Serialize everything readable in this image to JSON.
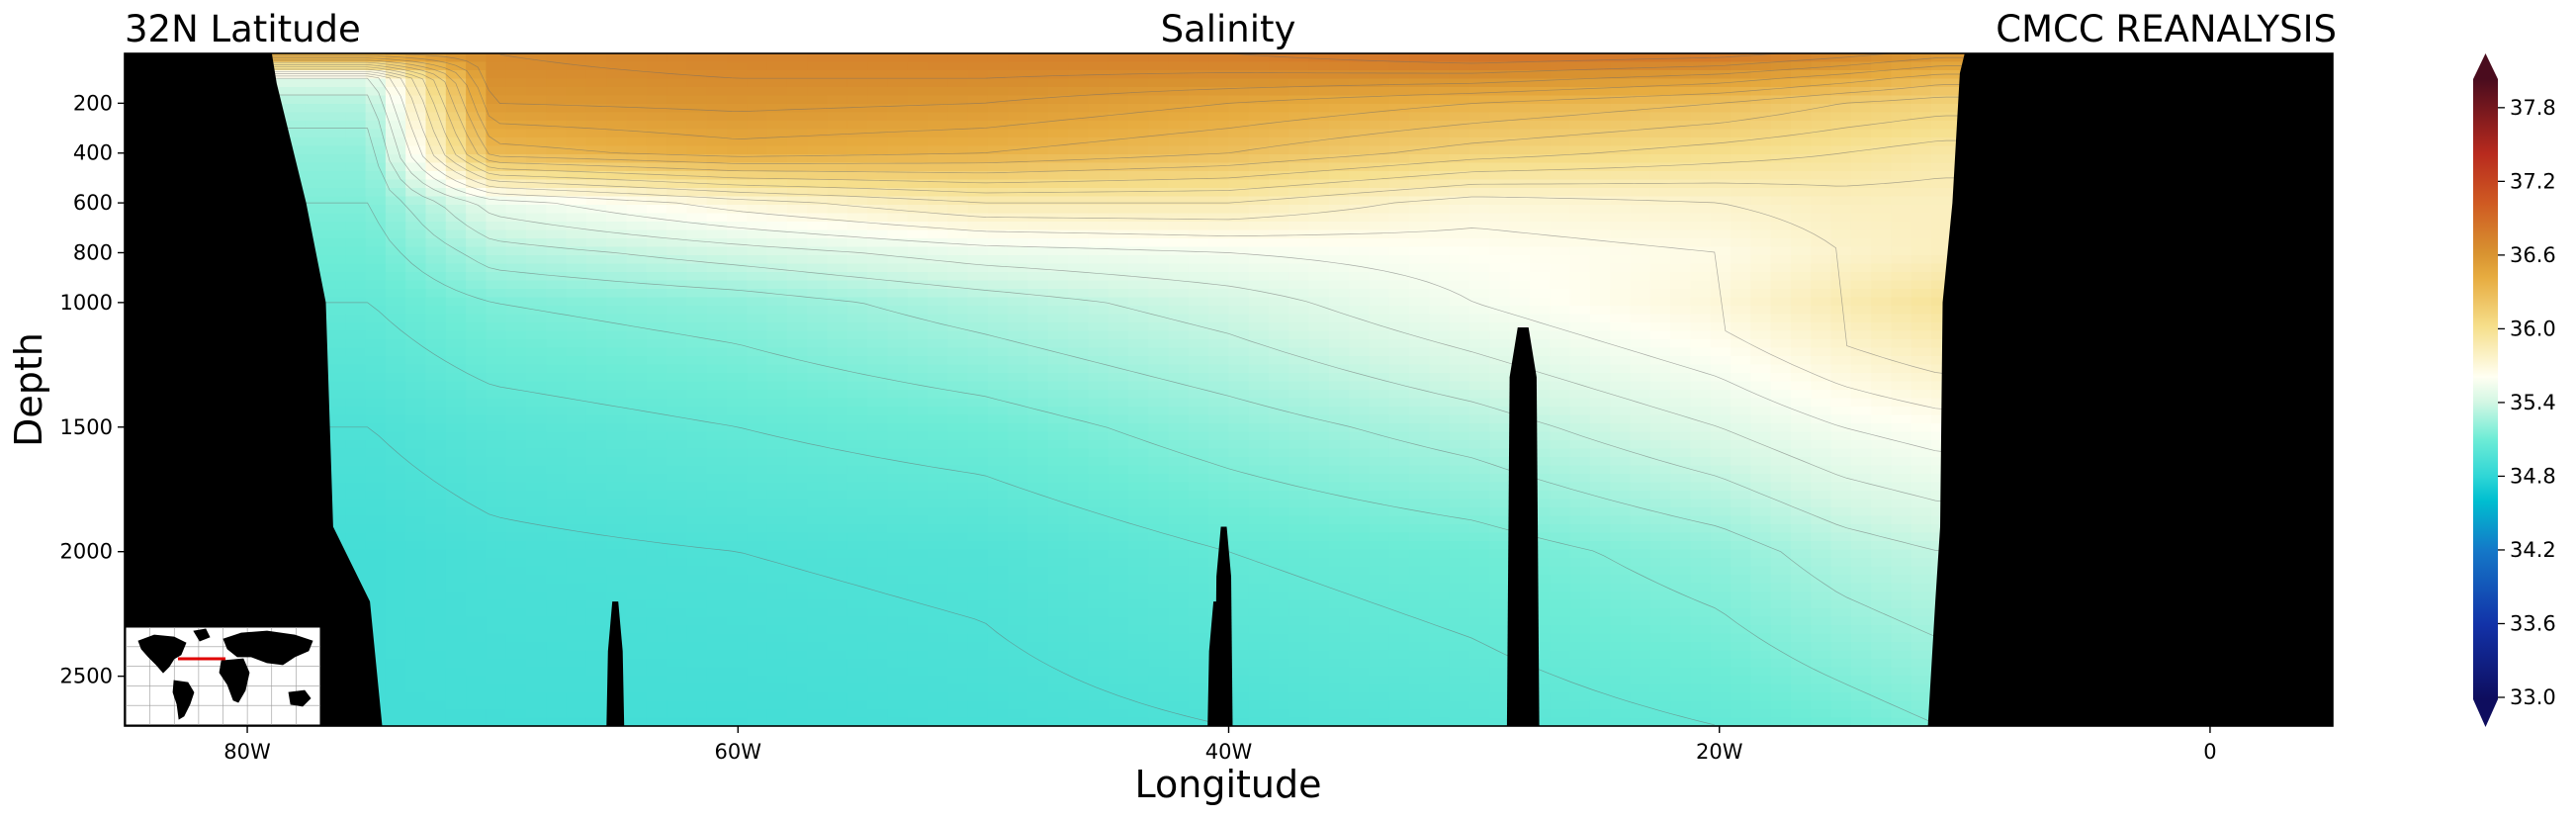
{
  "chart_data": {
    "type": "heatmap",
    "title_left": "32N Latitude",
    "title": "Salinity",
    "title_right": "CMCC REANALYSIS",
    "xlabel": "Longitude",
    "ylabel": "Depth",
    "x_ticks": [
      {
        "value": -80,
        "label": "80W"
      },
      {
        "value": -60,
        "label": "60W"
      },
      {
        "value": -40,
        "label": "40W"
      },
      {
        "value": -20,
        "label": "20W"
      },
      {
        "value": 0,
        "label": "0"
      }
    ],
    "y_ticks": [
      {
        "value": 200,
        "label": "200"
      },
      {
        "value": 400,
        "label": "400"
      },
      {
        "value": 600,
        "label": "600"
      },
      {
        "value": 800,
        "label": "800"
      },
      {
        "value": 1000,
        "label": "1000"
      },
      {
        "value": 1500,
        "label": "1500"
      },
      {
        "value": 2000,
        "label": "2000"
      },
      {
        "value": 2500,
        "label": "2500"
      }
    ],
    "xlim": [
      -85,
      5
    ],
    "ylim": [
      2700,
      0
    ],
    "colorbar": {
      "vmin": 33.0,
      "vmax": 38.0,
      "extend": "both",
      "ticks": [
        {
          "value": 33.0,
          "label": "33.0"
        },
        {
          "value": 33.6,
          "label": "33.6"
        },
        {
          "value": 34.2,
          "label": "34.2"
        },
        {
          "value": 34.8,
          "label": "34.8"
        },
        {
          "value": 35.4,
          "label": "35.4"
        },
        {
          "value": 36.0,
          "label": "36.0"
        },
        {
          "value": 36.6,
          "label": "36.6"
        },
        {
          "value": 37.2,
          "label": "37.2"
        },
        {
          "value": 37.8,
          "label": "37.8"
        }
      ],
      "stops": [
        {
          "value": 33.0,
          "color": "#0e0d5e"
        },
        {
          "value": 33.6,
          "color": "#1232a8"
        },
        {
          "value": 34.2,
          "color": "#1478c8"
        },
        {
          "value": 34.6,
          "color": "#00bed0"
        },
        {
          "value": 34.8,
          "color": "#2fd6d6"
        },
        {
          "value": 35.1,
          "color": "#6eecd6"
        },
        {
          "value": 35.4,
          "color": "#d4f7e4"
        },
        {
          "value": 35.6,
          "color": "#fffff2"
        },
        {
          "value": 36.0,
          "color": "#f6df8c"
        },
        {
          "value": 36.4,
          "color": "#e7ac40"
        },
        {
          "value": 36.6,
          "color": "#d89230"
        },
        {
          "value": 37.0,
          "color": "#cf5a22"
        },
        {
          "value": 37.4,
          "color": "#b82a1e"
        },
        {
          "value": 38.0,
          "color": "#4a0c1e"
        }
      ]
    },
    "salinity_sections": [
      {
        "lon": -75,
        "depths": [
          0,
          100,
          200,
          400,
          600,
          800,
          1000,
          1500,
          2000,
          2700
        ],
        "values": [
          36.55,
          35.45,
          35.3,
          35.2,
          35.15,
          35.1,
          35.05,
          34.95,
          34.9,
          34.9
        ]
      },
      {
        "lon": -70,
        "depths": [
          0,
          100,
          200,
          400,
          600,
          800,
          1000,
          1500,
          2000,
          2700
        ],
        "values": [
          36.65,
          36.62,
          36.55,
          36.3,
          35.5,
          35.3,
          35.15,
          35.0,
          34.93,
          34.9
        ]
      },
      {
        "lon": -60,
        "depths": [
          0,
          100,
          200,
          400,
          600,
          800,
          1000,
          1500,
          2000,
          2700
        ],
        "values": [
          36.7,
          36.65,
          36.58,
          36.4,
          35.7,
          35.4,
          35.2,
          35.05,
          34.95,
          34.9
        ]
      },
      {
        "lon": -50,
        "depths": [
          0,
          100,
          200,
          400,
          600,
          800,
          1000,
          1500,
          2000,
          2700
        ],
        "values": [
          36.72,
          36.65,
          36.55,
          36.35,
          35.85,
          35.5,
          35.3,
          35.1,
          34.97,
          34.92
        ]
      },
      {
        "lon": -40,
        "depths": [
          0,
          100,
          200,
          400,
          600,
          800,
          1000,
          1500,
          2000,
          2700
        ],
        "values": [
          36.75,
          36.62,
          36.45,
          36.25,
          35.85,
          35.55,
          35.4,
          35.2,
          35.05,
          34.95
        ]
      },
      {
        "lon": -30,
        "depths": [
          0,
          100,
          200,
          400,
          600,
          800,
          1000,
          1500,
          2000,
          2700
        ],
        "values": [
          36.85,
          36.6,
          36.35,
          36.1,
          35.7,
          35.6,
          35.55,
          35.3,
          35.1,
          35.0
        ]
      },
      {
        "lon": -20,
        "depths": [
          0,
          100,
          200,
          400,
          600,
          800,
          1000,
          1500,
          2000,
          2700
        ],
        "values": [
          36.8,
          36.5,
          36.25,
          36.0,
          35.75,
          35.65,
          35.7,
          35.45,
          35.2,
          35.05
        ]
      },
      {
        "lon": -15,
        "depths": [
          0,
          100,
          200,
          400,
          600,
          800,
          1000,
          1500,
          2000,
          2700
        ],
        "values": [
          36.7,
          36.4,
          36.15,
          35.95,
          35.8,
          35.75,
          35.85,
          35.55,
          35.3,
          35.1
        ]
      },
      {
        "lon": -11,
        "depths": [
          0,
          100,
          200,
          400,
          600,
          800,
          1000,
          1500,
          2000,
          2700
        ],
        "values": [
          36.6,
          36.3,
          36.1,
          35.9,
          35.8,
          35.8,
          35.95,
          35.6,
          35.35,
          35.15
        ]
      }
    ],
    "bathymetry": {
      "west_coast": {
        "lon_at_surface": -79,
        "lon_at_600": -77.6,
        "lon_at_1000": -76.8,
        "lon_at_1900": -76.5,
        "lon_at_2700": -74.5
      },
      "east_coast": {
        "lon_at_surface": -10,
        "lon_at_600": -10.5,
        "lon_at_1000": -10.9,
        "lon_at_1900": -11.0,
        "lon_at_2700": -11.5
      },
      "seamounts": [
        {
          "lon": -65,
          "top_depth": 2200
        },
        {
          "lon": -40.5,
          "top_depth": 2200
        },
        {
          "lon": -40.2,
          "top_depth": 1900
        },
        {
          "lon": -28,
          "top_depth": 1100
        }
      ]
    },
    "inset_map": {
      "type": "world-map",
      "section_line": "red"
    }
  }
}
